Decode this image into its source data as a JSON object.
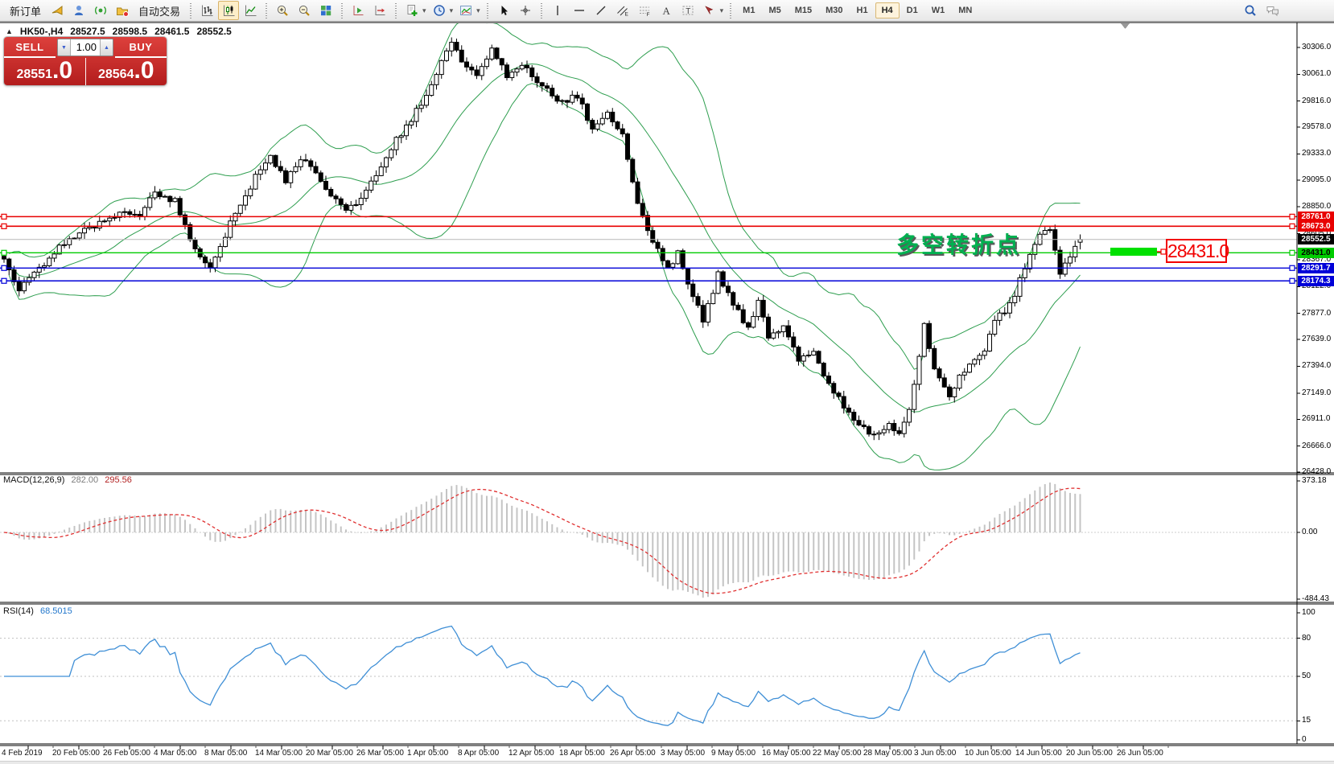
{
  "toolbar": {
    "new_order": "新订单",
    "auto_trading": "自动交易",
    "timeframes": [
      "M1",
      "M5",
      "M15",
      "M30",
      "H1",
      "H4",
      "D1",
      "W1",
      "MN"
    ],
    "active_timeframe": "H4",
    "items": [
      {
        "kind": "text",
        "name": "new-order-button",
        "label_key": "new_order"
      },
      {
        "kind": "icon",
        "name": "megaphone-icon"
      },
      {
        "kind": "icon",
        "name": "navigator-icon"
      },
      {
        "kind": "icon",
        "name": "signal-icon"
      },
      {
        "kind": "icon",
        "name": "autotrading-icon"
      },
      {
        "kind": "text",
        "name": "auto-trading-button",
        "label_key": "auto_trading"
      },
      {
        "kind": "sep"
      },
      {
        "kind": "icon",
        "name": "bar-chart-icon"
      },
      {
        "kind": "icon",
        "name": "candlestick-chart-icon",
        "active": true
      },
      {
        "kind": "icon",
        "name": "line-chart-icon"
      },
      {
        "kind": "sep"
      },
      {
        "kind": "icon",
        "name": "zoom-in-icon"
      },
      {
        "kind": "icon",
        "name": "zoom-out-icon"
      },
      {
        "kind": "icon",
        "name": "tile-windows-icon"
      },
      {
        "kind": "sep"
      },
      {
        "kind": "icon",
        "name": "auto-scroll-icon"
      },
      {
        "kind": "icon",
        "name": "chart-shift-icon"
      },
      {
        "kind": "sep"
      },
      {
        "kind": "icon",
        "name": "new-chart-icon",
        "dropdown": true
      },
      {
        "kind": "icon",
        "name": "periodicity-icon",
        "dropdown": true
      },
      {
        "kind": "icon",
        "name": "indicators-icon",
        "dropdown": true
      },
      {
        "kind": "sep"
      },
      {
        "kind": "icon",
        "name": "cursor-icon"
      },
      {
        "kind": "icon",
        "name": "crosshair-icon"
      },
      {
        "kind": "sep"
      },
      {
        "kind": "icon",
        "name": "vertical-line-icon"
      },
      {
        "kind": "icon",
        "name": "horizontal-line-icon"
      },
      {
        "kind": "icon",
        "name": "trendline-icon"
      },
      {
        "kind": "icon",
        "name": "channel-icon"
      },
      {
        "kind": "icon",
        "name": "fibonacci-icon"
      },
      {
        "kind": "icon",
        "name": "text-icon"
      },
      {
        "kind": "icon",
        "name": "text-label-icon"
      },
      {
        "kind": "icon",
        "name": "arrows-icon",
        "dropdown": true
      },
      {
        "kind": "sep"
      },
      {
        "kind": "timeframes"
      },
      {
        "kind": "spacer"
      },
      {
        "kind": "icon",
        "name": "search-icon"
      },
      {
        "kind": "icon",
        "name": "chat-icon"
      }
    ]
  },
  "symbol_header": {
    "symbol": "HK50-,H4",
    "open": "28527.5",
    "high": "28598.5",
    "low": "28461.5",
    "close": "28552.5"
  },
  "trade_panel": {
    "sell_label": "SELL",
    "buy_label": "BUY",
    "volume": "1.00",
    "sell_big": "28551",
    "sell_small": ".0",
    "buy_big": "28564",
    "buy_small": ".0"
  },
  "annotation": {
    "text": "多空转折点",
    "tag": "28431.0"
  },
  "price_axis_ticks": [
    "30306.0",
    "30061.0",
    "29816.0",
    "29578.0",
    "29333.0",
    "29095.0",
    "28850.0",
    "28605.0",
    "28367.0",
    "28122.0",
    "27877.0",
    "27639.0",
    "27394.0",
    "27149.0",
    "26911.0",
    "26666.0",
    "26428.0"
  ],
  "levels": [
    {
      "value": 28761.0,
      "label": "28761.0",
      "color": "#e80000",
      "text_color": "#ffffff",
      "width": 1.6
    },
    {
      "value": 28673.0,
      "label": "28673.0",
      "color": "#e80000",
      "text_color": "#ffffff",
      "width": 1.6
    },
    {
      "value": 28431.0,
      "label": "28431.0",
      "color": "#00cc00",
      "text_color": "#000000",
      "width": 1.4
    },
    {
      "value": 28291.7,
      "label": "28291.7",
      "color": "#0000d8",
      "text_color": "#ffffff",
      "width": 1.4
    },
    {
      "value": 28174.3,
      "label": "28174.3",
      "color": "#0000d8",
      "text_color": "#ffffff",
      "width": 1.4
    }
  ],
  "current_price": {
    "value": 28552.5,
    "label": "28552.5"
  },
  "macd_pane": {
    "name": "MACD(12,26,9)",
    "val1": "282.00",
    "val2": "295.56",
    "ticks": [
      "373.18",
      "0.00",
      "-484.43"
    ],
    "tick_values": [
      373.18,
      0,
      -484.43
    ]
  },
  "rsi_pane": {
    "name": "RSI(14)",
    "value": "68.5015",
    "ticks": [
      "100",
      "80",
      "50",
      "15",
      "0"
    ],
    "tick_values": [
      100,
      80,
      50,
      15,
      0
    ],
    "level_lines": [
      80,
      50,
      15
    ]
  },
  "date_axis": [
    "4 Feb 2019",
    "20 Feb 05:00",
    "26 Feb 05:00",
    "4 Mar 05:00",
    "8 Mar 05:00",
    "14 Mar 05:00",
    "20 Mar 05:00",
    "26 Mar 05:00",
    "1 Apr 05:00",
    "8 Apr 05:00",
    "12 Apr 05:00",
    "18 Apr 05:00",
    "26 Apr 05:00",
    "3 May 05:00",
    "9 May 05:00",
    "16 May 05:00",
    "22 May 05:00",
    "28 May 05:00",
    "3 Jun 05:00",
    "10 Jun 05:00",
    "14 Jun 05:00",
    "20 Jun 05:00",
    "26 Jun 05:00"
  ],
  "chart_data": {
    "type": "candlestick",
    "symbol": "HK50-",
    "timeframe": "H4",
    "bars": 215,
    "y_axis_range": [
      26428.0,
      30306.0
    ],
    "ohlc_last": {
      "open": 28527.5,
      "high": 28598.5,
      "low": 28461.5,
      "close": 28552.5
    },
    "close_keypoints": [
      [
        0,
        28350
      ],
      [
        3,
        28080
      ],
      [
        6,
        28250
      ],
      [
        12,
        28520
      ],
      [
        18,
        28680
      ],
      [
        24,
        28800
      ],
      [
        27,
        28760
      ],
      [
        30,
        28980
      ],
      [
        34,
        28900
      ],
      [
        38,
        28450
      ],
      [
        41,
        28280
      ],
      [
        45,
        28700
      ],
      [
        50,
        29120
      ],
      [
        53,
        29320
      ],
      [
        56,
        29100
      ],
      [
        60,
        29300
      ],
      [
        64,
        29000
      ],
      [
        68,
        28800
      ],
      [
        72,
        29000
      ],
      [
        77,
        29400
      ],
      [
        82,
        29720
      ],
      [
        86,
        30050
      ],
      [
        89,
        30380
      ],
      [
        91,
        30150
      ],
      [
        94,
        30060
      ],
      [
        97,
        30300
      ],
      [
        100,
        30060
      ],
      [
        103,
        30160
      ],
      [
        107,
        29950
      ],
      [
        111,
        29800
      ],
      [
        114,
        29860
      ],
      [
        117,
        29560
      ],
      [
        120,
        29700
      ],
      [
        123,
        29500
      ],
      [
        126,
        28900
      ],
      [
        128,
        28620
      ],
      [
        130,
        28480
      ],
      [
        132,
        28280
      ],
      [
        134,
        28420
      ],
      [
        137,
        28050
      ],
      [
        139,
        27800
      ],
      [
        142,
        28230
      ],
      [
        145,
        27950
      ],
      [
        148,
        27750
      ],
      [
        150,
        28000
      ],
      [
        152,
        27650
      ],
      [
        155,
        27780
      ],
      [
        158,
        27450
      ],
      [
        161,
        27550
      ],
      [
        163,
        27280
      ],
      [
        166,
        27100
      ],
      [
        168,
        26950
      ],
      [
        170,
        26880
      ],
      [
        172,
        26800
      ],
      [
        174,
        26760
      ],
      [
        176,
        26870
      ],
      [
        178,
        26800
      ],
      [
        180,
        26980
      ],
      [
        182,
        27480
      ],
      [
        183,
        27780
      ],
      [
        185,
        27350
      ],
      [
        188,
        27120
      ],
      [
        190,
        27300
      ],
      [
        192,
        27420
      ],
      [
        195,
        27550
      ],
      [
        197,
        27820
      ],
      [
        199,
        27900
      ],
      [
        201,
        28050
      ],
      [
        203,
        28300
      ],
      [
        206,
        28600
      ],
      [
        208,
        28650
      ],
      [
        210,
        28230
      ],
      [
        212,
        28420
      ],
      [
        214,
        28552.5
      ]
    ],
    "indicators": [
      {
        "name": "Bollinger Bands",
        "period": 20,
        "deviation": 2,
        "color": "#2e9e4f"
      },
      {
        "name": "MACD",
        "params": [
          12,
          26,
          9
        ],
        "current_main": 282.0,
        "current_signal": 295.56,
        "range": [
          -484.43,
          373.18
        ]
      },
      {
        "name": "RSI",
        "period": 14,
        "current": 68.5015,
        "levels": [
          80,
          50,
          15
        ]
      }
    ],
    "horizontal_levels": [
      28761.0,
      28673.0,
      28431.0,
      28291.7,
      28174.3
    ]
  }
}
